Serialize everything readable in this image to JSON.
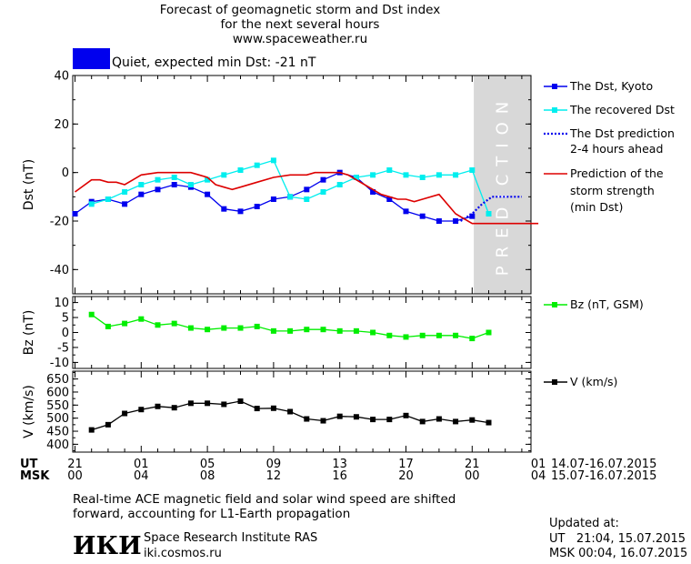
{
  "header": {
    "title_line1": "Forecast of geomagnetic storm and Dst index",
    "title_line2": "for the next several hours",
    "site": "www.spaceweather.ru",
    "status_color": "#0000ee",
    "status_text": "Quiet, expected min Dst: -21 nT"
  },
  "panels": {
    "dst": {
      "ylabel": "Dst (nT)",
      "ylim": [
        -50,
        40
      ],
      "ticks": [
        40,
        20,
        0,
        -20,
        -40
      ]
    },
    "bz": {
      "ylabel": "Bz (nT)",
      "ylim": [
        -12,
        12
      ],
      "ticks": [
        10,
        5,
        0,
        -5,
        -10
      ]
    },
    "v": {
      "ylabel": "V (km/s)",
      "ylim": [
        370,
        680
      ],
      "ticks": [
        650,
        600,
        550,
        500,
        450,
        400
      ]
    }
  },
  "prediction_label": "PREDICTION",
  "legend": {
    "dst_kyoto": "The Dst, Kyoto",
    "recovered": "The recovered Dst",
    "pred_line1": "The Dst prediction",
    "pred_line2": "2-4 hours ahead",
    "storm_line1": "Prediction of the",
    "storm_line2": "storm strength",
    "storm_line3": "(min Dst)",
    "bz": "Bz (nT, GSM)",
    "v": "V (km/s)"
  },
  "time_axis": {
    "ut_label": "UT",
    "msk_label": "MSK",
    "ut_ticks": [
      "21",
      "01",
      "05",
      "09",
      "13",
      "17",
      "21",
      "01"
    ],
    "msk_ticks": [
      "00",
      "04",
      "08",
      "12",
      "16",
      "20",
      "00",
      "04"
    ],
    "ut_range": "14.07-16.07.2015",
    "msk_range": "15.07-16.07.2015"
  },
  "footer": {
    "note_line1": "Real-time ACE magnetic field and solar wind speed are shifted",
    "note_line2": "forward, accounting for L1-Earth propagation",
    "logo": "ИКИ",
    "institute": "Space Research Institute RAS",
    "institute_url": "iki.cosmos.ru",
    "updated_label": "Updated at:",
    "updated_ut": "UT   21:04, 15.07.2015",
    "updated_msk": "MSK 00:04, 16.07.2015"
  },
  "chart_data": [
    {
      "type": "line",
      "panel": "dst",
      "x_unit": "hours since 21 UT 14.07.2015",
      "xlim": [
        0,
        28
      ],
      "prediction_window": [
        24.1,
        28
      ],
      "series": [
        {
          "name": "The Dst, Kyoto",
          "color": "#0000ee",
          "style": "solid-square-markers",
          "x": [
            0,
            1,
            2,
            3,
            4,
            5,
            6,
            7,
            8,
            9,
            10,
            11,
            12,
            13,
            14,
            15,
            16,
            17,
            18,
            19,
            20,
            21,
            22,
            23,
            24
          ],
          "y": [
            -17,
            -12,
            -11,
            -13,
            -9,
            -7,
            -5,
            -6,
            -9,
            -15,
            -16,
            -14,
            -11,
            -10,
            -7,
            -3,
            0,
            -2,
            -8,
            -11,
            -16,
            -18,
            -20,
            -20,
            -18
          ]
        },
        {
          "name": "The recovered Dst",
          "color": "#00eeee",
          "style": "solid-square-markers",
          "x": [
            1,
            2,
            3,
            4,
            5,
            6,
            7,
            8,
            9,
            10,
            11,
            12,
            13,
            14,
            15,
            16,
            17,
            18,
            19,
            20,
            21,
            22,
            23,
            24,
            25
          ],
          "y": [
            -13,
            -11,
            -8,
            -5,
            -3,
            -2,
            -5,
            -3,
            -1,
            1,
            3,
            5,
            -10,
            -11,
            -8,
            -5,
            -2,
            -1,
            1,
            -1,
            -2,
            -1,
            -1,
            1,
            -17
          ]
        },
        {
          "name": "The Dst prediction 2-4 hours ahead",
          "color": "#0000ee",
          "style": "dotted",
          "x": [
            23.3,
            24,
            24.6,
            25.2,
            26,
            27
          ],
          "y": [
            -20,
            -17,
            -13,
            -10,
            -10,
            -10
          ]
        },
        {
          "name": "Prediction of the storm strength (min Dst)",
          "color": "#dd0000",
          "style": "solid",
          "x": [
            0,
            1,
            1.5,
            2,
            2.5,
            3,
            3.5,
            4,
            5,
            6,
            7,
            7.5,
            8,
            8.5,
            9,
            9.5,
            10,
            11,
            12,
            13,
            14,
            14.5,
            15,
            15.5,
            16,
            16.5,
            17,
            17.5,
            18,
            18.5,
            19,
            19.5,
            20,
            20.5,
            21,
            22,
            23,
            24,
            28
          ],
          "y": [
            -8,
            -3,
            -3,
            -4,
            -4,
            -5,
            -3,
            -1,
            0,
            0,
            0,
            -1,
            -2,
            -5,
            -6,
            -7,
            -6,
            -4,
            -2,
            -1,
            -1,
            0,
            0,
            0,
            0,
            -1,
            -3,
            -5,
            -7,
            -9,
            -10,
            -11,
            -11,
            -12,
            -11,
            -9,
            -17,
            -21,
            -21
          ]
        }
      ]
    },
    {
      "type": "line",
      "panel": "bz",
      "series": [
        {
          "name": "Bz (nT, GSM)",
          "color": "#00ee00",
          "x": [
            1,
            2,
            3,
            4,
            5,
            6,
            7,
            8,
            9,
            10,
            11,
            12,
            13,
            14,
            15,
            16,
            17,
            18,
            19,
            20,
            21,
            22,
            23,
            24,
            25
          ],
          "y": [
            6,
            2,
            3,
            4.5,
            2.5,
            3,
            1.5,
            1,
            1.5,
            1.5,
            2,
            0.5,
            0.5,
            1,
            1,
            0.5,
            0.5,
            0,
            -1,
            -1.5,
            -1,
            -1,
            -1,
            -2,
            0
          ]
        }
      ]
    },
    {
      "type": "line",
      "panel": "v",
      "series": [
        {
          "name": "V (km/s)",
          "color": "#000000",
          "x": [
            1,
            2,
            3,
            4,
            5,
            6,
            7,
            8,
            9,
            10,
            11,
            12,
            13,
            14,
            15,
            16,
            17,
            18,
            19,
            20,
            21,
            22,
            23,
            24,
            25
          ],
          "y": [
            455,
            475,
            518,
            533,
            545,
            540,
            557,
            557,
            553,
            565,
            537,
            538,
            525,
            497,
            490,
            507,
            505,
            495,
            495,
            510,
            487,
            497,
            487,
            493,
            483
          ]
        }
      ]
    }
  ]
}
